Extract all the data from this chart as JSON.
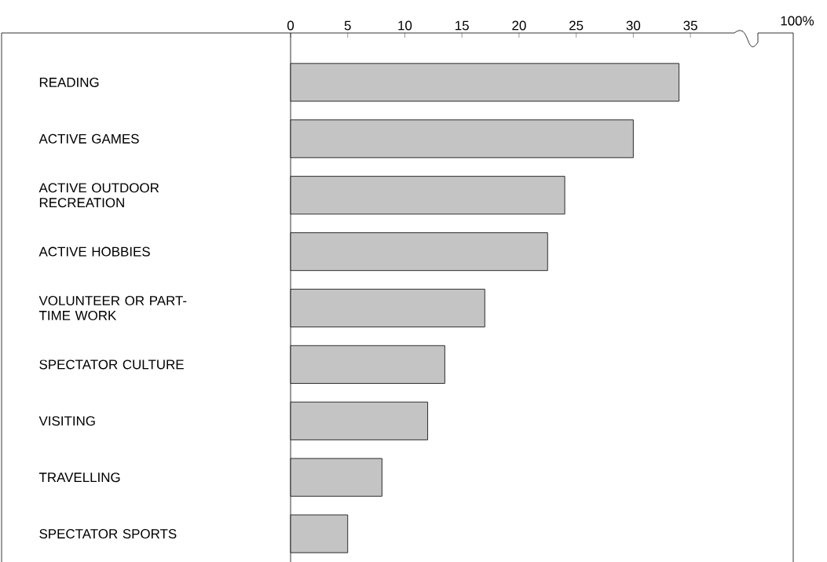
{
  "chart_data": {
    "type": "bar",
    "orientation": "horizontal",
    "categories": [
      "READING",
      "ACTIVE GAMES",
      "ACTIVE OUTDOOR RECREATION",
      "ACTIVE HOBBIES",
      "VOLUNTEER OR PART-TIME WORK",
      "SPECTATOR CULTURE",
      "VISITING",
      "TRAVELLING",
      "SPECTATOR SPORTS"
    ],
    "values": [
      34,
      30,
      24,
      22.5,
      17,
      13.5,
      12,
      8,
      5
    ],
    "color": "#c4c4c4",
    "xlim": [
      0,
      44
    ],
    "xticks": [
      0,
      5,
      10,
      15,
      20,
      25,
      30,
      35
    ],
    "annotations": [
      "100%"
    ]
  }
}
